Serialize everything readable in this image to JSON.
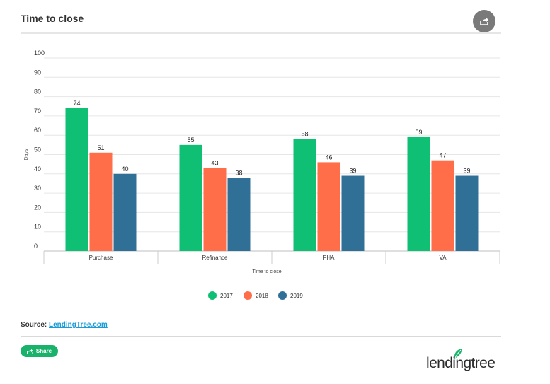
{
  "header": {
    "title": "Time to close",
    "share_icon": "share-icon"
  },
  "chart_data": {
    "type": "bar",
    "title": "",
    "xlabel": "Time to close",
    "ylabel": "Days",
    "ylim": [
      0,
      100
    ],
    "yticks": [
      "0",
      "10",
      "20",
      "30",
      "40",
      "50",
      "60",
      "70",
      "80",
      "90",
      "100"
    ],
    "categories": [
      "Purchase",
      "Refinance",
      "FHA",
      "VA"
    ],
    "series": [
      {
        "name": "2017",
        "color": "#0fbf74",
        "values": [
          74,
          55,
          58,
          59
        ]
      },
      {
        "name": "2018",
        "color": "#ff6e48",
        "values": [
          51,
          43,
          46,
          47
        ]
      },
      {
        "name": "2019",
        "color": "#307097",
        "values": [
          40,
          38,
          39,
          39
        ]
      }
    ],
    "grid": true,
    "legend": "bottom-center"
  },
  "footer": {
    "source_label": "Source:",
    "source_link": "LendingTree.com",
    "share_label": "Share",
    "logo_text": "lendingtree",
    "logo_icon": "leaf-icon"
  }
}
